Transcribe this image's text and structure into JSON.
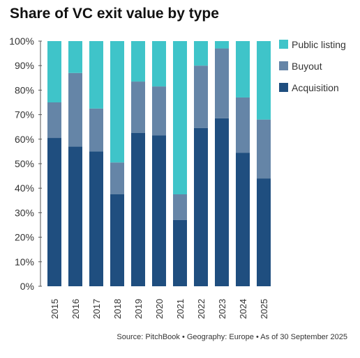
{
  "colors": {
    "acquisition": "#1f4e7f",
    "buyout": "#6585a7",
    "public_listing": "#3fc4c9",
    "axis": "#555555",
    "text": "#333333"
  },
  "source_text": "Source: PitchBook • Geography: Europe • As of 30 September 2025",
  "chart_data": {
    "type": "bar",
    "stacked": true,
    "title": "Share of VC exit value by type",
    "categories": [
      "2015",
      "2016",
      "2017",
      "2018",
      "2019",
      "2020",
      "2021",
      "2022",
      "2023",
      "2024",
      "2025"
    ],
    "series": [
      {
        "name": "Acquisition",
        "values": [
          60.5,
          57.0,
          55.0,
          37.5,
          62.5,
          61.5,
          27.0,
          64.5,
          68.5,
          54.5,
          44.0
        ]
      },
      {
        "name": "Buyout",
        "values": [
          14.5,
          30.0,
          17.5,
          13.0,
          21.0,
          20.0,
          10.5,
          25.5,
          28.5,
          22.5,
          24.0
        ]
      },
      {
        "name": "Public listing",
        "values": [
          25.0,
          13.0,
          27.5,
          49.5,
          16.5,
          18.5,
          62.5,
          10.0,
          3.0,
          23.0,
          32.0
        ]
      }
    ],
    "ylim": [
      0,
      100
    ],
    "yticks": [
      "0%",
      "10%",
      "20%",
      "30%",
      "40%",
      "50%",
      "60%",
      "70%",
      "80%",
      "90%",
      "100%"
    ],
    "legend": [
      "Public listing",
      "Buyout",
      "Acquisition"
    ],
    "legend_position": "right",
    "grid": false
  }
}
